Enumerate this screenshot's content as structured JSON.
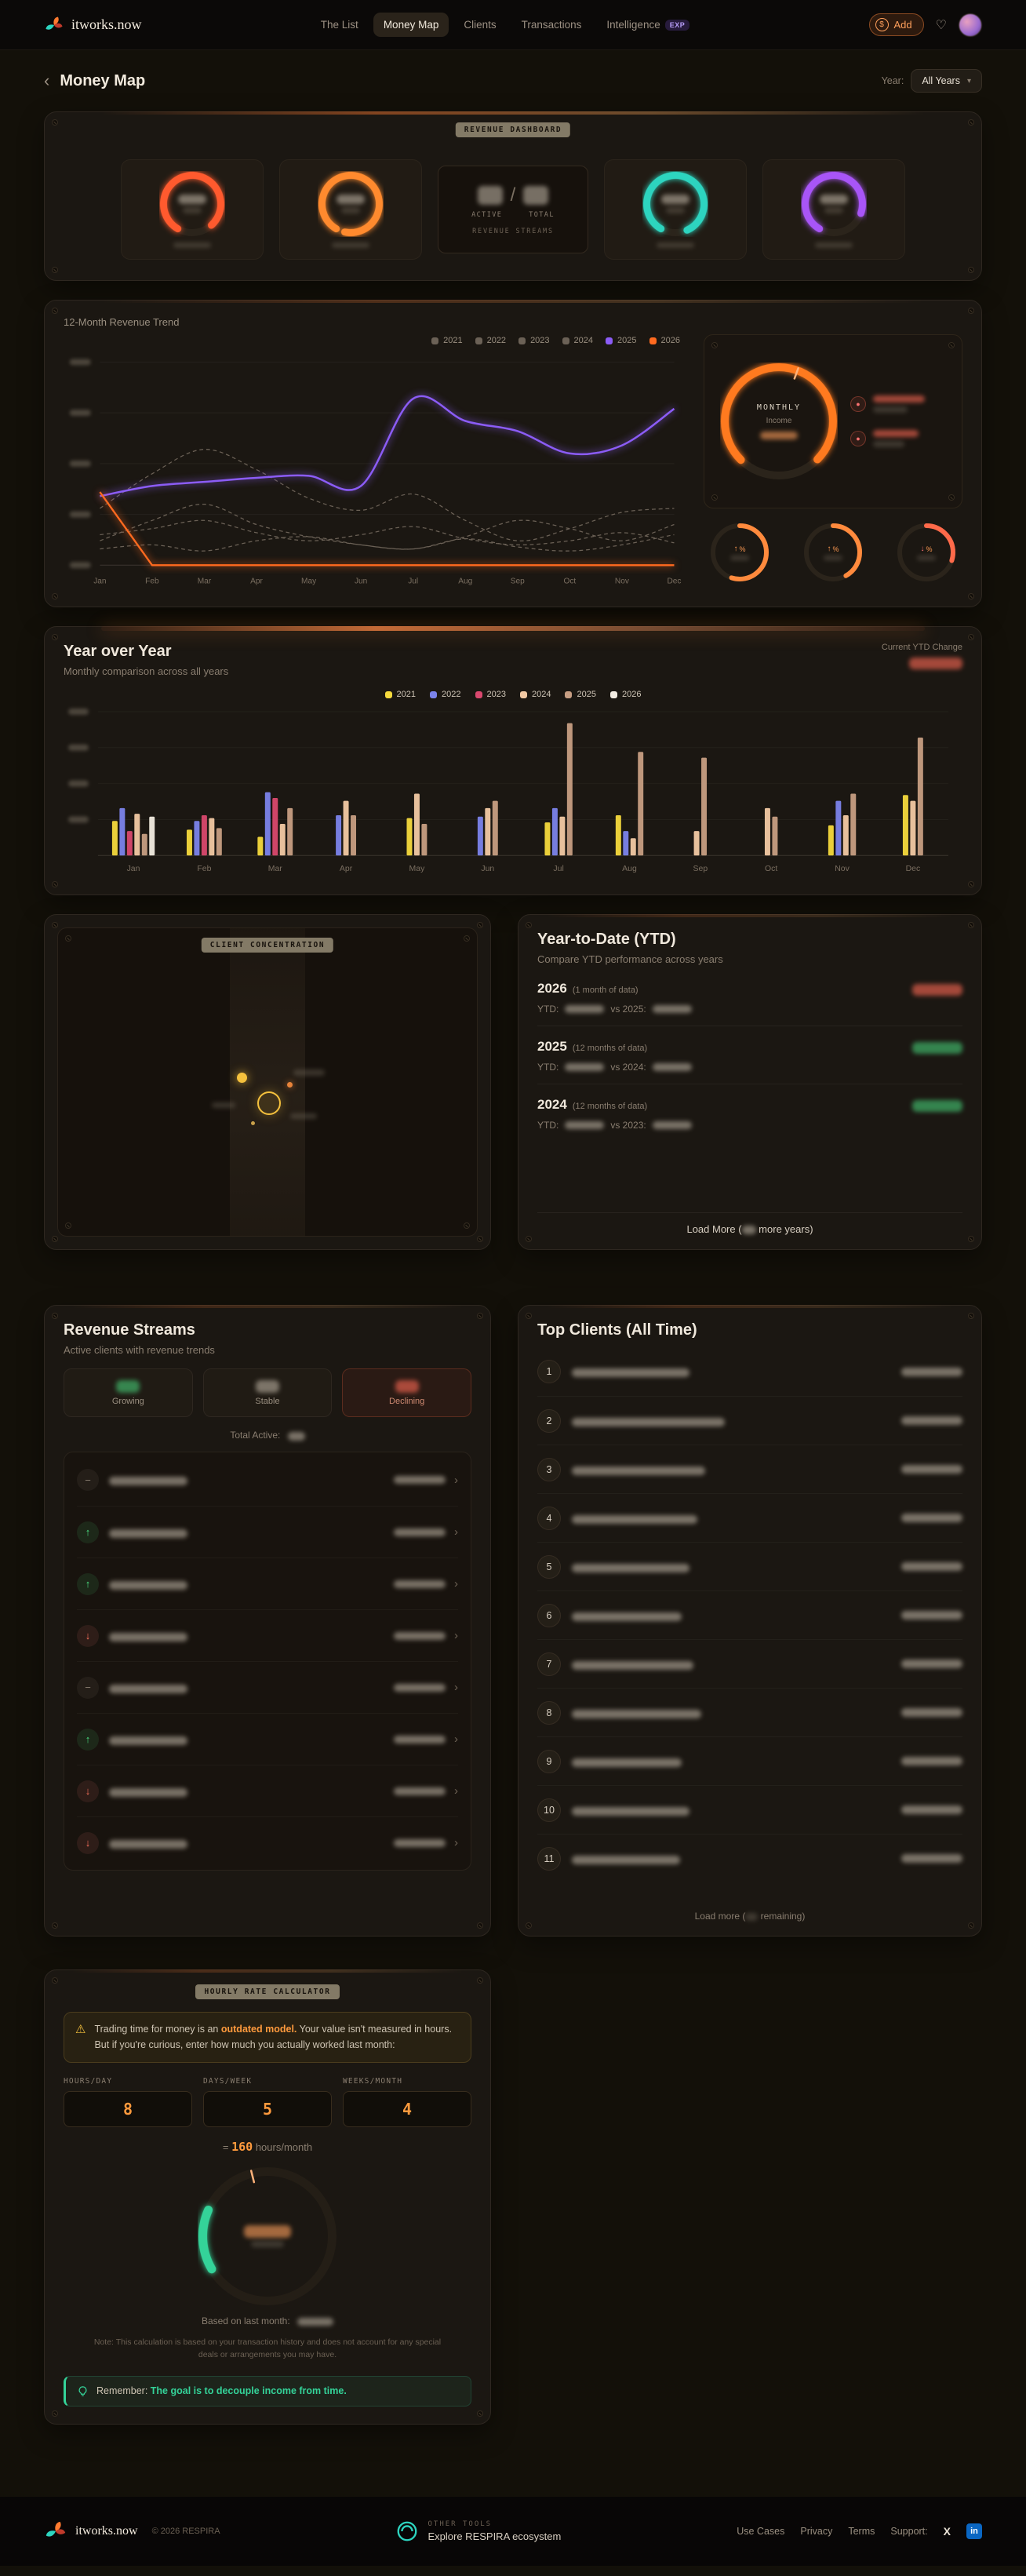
{
  "theme": {
    "accent_orange": "#ff7a2f",
    "accent_purple": "#8b5cf6",
    "accent_teal": "#2dd4bf",
    "accent_green": "#34d399",
    "accent_red": "#f87171",
    "accent_yellow": "#f5c13d"
  },
  "nav": {
    "brand": "itworks.now",
    "items": [
      {
        "label": "The List",
        "active": false
      },
      {
        "label": "Money Map",
        "active": true
      },
      {
        "label": "Clients",
        "active": false
      },
      {
        "label": "Transactions",
        "active": false
      },
      {
        "label": "Intelligence",
        "active": false,
        "badge": "EXP"
      }
    ],
    "add_label": "Add",
    "add_icon": "$"
  },
  "page": {
    "back": "‹",
    "title": "Money Map",
    "year_label": "Year:",
    "year_value": "All Years",
    "chevron": "▾"
  },
  "hero": {
    "badge": "REVENUE DASHBOARD",
    "divider": "/",
    "active_label": "ACTIVE",
    "total_label": "TOTAL",
    "caption": "REVENUE STREAMS"
  },
  "trend": {
    "title": "12-Month Revenue Trend",
    "gauge_title": "MONTHLY",
    "gauge_sub": "Income",
    "pct": "%",
    "minis": [
      {
        "arrow": "↑",
        "dir": "up"
      },
      {
        "arrow": "↑",
        "dir": "up"
      },
      {
        "arrow": "↓",
        "dir": "down"
      }
    ]
  },
  "yoy": {
    "title": "Year over Year",
    "subtitle": "Monthly comparison across all years",
    "ytd_change_label": "Current YTD Change"
  },
  "concentration": {
    "badge": "CLIENT CONCENTRATION"
  },
  "ytd": {
    "title": "Year-to-Date (YTD)",
    "subtitle": "Compare YTD performance across years",
    "rows": [
      {
        "year": "2026",
        "span": "(1 month of data)",
        "ytd_label": "YTD:",
        "vs_label": "vs 2025:",
        "trend": "down"
      },
      {
        "year": "2025",
        "span": "(12 months of data)",
        "ytd_label": "YTD:",
        "vs_label": "vs 2024:",
        "trend": "up"
      },
      {
        "year": "2024",
        "span": "(12 months of data)",
        "ytd_label": "YTD:",
        "vs_label": "vs 2023:",
        "trend": "up"
      }
    ],
    "load_more_prefix": "Load More (",
    "load_more_suffix": " more years)"
  },
  "streams": {
    "title": "Revenue Streams",
    "subtitle": "Active clients with revenue trends",
    "stats": [
      {
        "label": "Growing",
        "tone": "green"
      },
      {
        "label": "Stable",
        "tone": "neutral"
      },
      {
        "label": "Declining",
        "tone": "red"
      }
    ],
    "total_label": "Total Active:",
    "rows": [
      {
        "trend": "flat"
      },
      {
        "trend": "up"
      },
      {
        "trend": "up"
      },
      {
        "trend": "down"
      },
      {
        "trend": "flat"
      },
      {
        "trend": "up"
      },
      {
        "trend": "down"
      },
      {
        "trend": "down"
      }
    ]
  },
  "top_clients": {
    "title": "Top Clients (All Time)",
    "ranks": [
      "1",
      "2",
      "3",
      "4",
      "5",
      "6",
      "7",
      "8",
      "9",
      "10",
      "11"
    ],
    "load_more_prefix": "Load more (",
    "load_more_suffix": " remaining)"
  },
  "calculator": {
    "badge": "HOURLY RATE CALCULATOR",
    "warn_icon": "⚠",
    "warn_pre": "Trading time for money is an ",
    "warn_bold": "outdated model.",
    "warn_post": " Your value isn't measured in hours. But if you're curious, enter how much you actually worked last month:",
    "inputs": [
      {
        "label": "HOURS/DAY",
        "value": "8"
      },
      {
        "label": "DAYS/WEEK",
        "value": "5"
      },
      {
        "label": "WEEKS/MONTH",
        "value": "4"
      }
    ],
    "equals_sign": "=",
    "hours_total": "160",
    "hours_unit": "hours/month",
    "based_label": "Based on last month:",
    "note": "Note: This calculation is based on your transaction history and does not account for any special deals or arrangements you may have.",
    "tip_label": "Remember:",
    "tip_text": "The goal is to decouple income from time."
  },
  "footer": {
    "brand": "itworks.now",
    "copyright": "© 2026 RESPIRA",
    "other_tools": "OTHER TOOLS",
    "other_tools_sub": "Explore RESPIRA ecosystem",
    "links": [
      "Use Cases",
      "Privacy",
      "Terms"
    ],
    "support_label": "Support:",
    "x_label": "X",
    "linkedin_label": "in"
  },
  "chart_data": [
    {
      "type": "line",
      "title": "12-Month Revenue Trend",
      "x": [
        "Jan",
        "Feb",
        "Mar",
        "Apr",
        "May",
        "Jun",
        "Jul",
        "Aug",
        "Sep",
        "Oct",
        "Nov",
        "Dec"
      ],
      "ylim": [
        0,
        100
      ],
      "y_axis_labels_redacted": true,
      "grid": true,
      "legend_position": "top-right",
      "series": [
        {
          "name": "2021",
          "color": "#6b6156",
          "dash": true,
          "values": [
            8,
            10,
            7,
            12,
            14,
            10,
            8,
            13,
            9,
            7,
            10,
            15
          ]
        },
        {
          "name": "2022",
          "color": "#6b6156",
          "dash": true,
          "values": [
            15,
            18,
            22,
            16,
            12,
            15,
            19,
            13,
            10,
            12,
            16,
            11
          ]
        },
        {
          "name": "2023",
          "color": "#6b6156",
          "dash": true,
          "values": [
            12,
            22,
            30,
            20,
            14,
            10,
            8,
            14,
            22,
            18,
            12,
            20
          ]
        },
        {
          "name": "2024",
          "color": "#6b6156",
          "dash": true,
          "values": [
            28,
            45,
            57,
            47,
            33,
            27,
            35,
            22,
            12,
            18,
            26,
            28
          ]
        },
        {
          "name": "2025",
          "color": "#8b5cf6",
          "dash": false,
          "width": 2.6,
          "glow": true,
          "values": [
            34,
            39,
            41,
            43,
            44,
            39,
            82,
            71,
            66,
            55,
            59,
            77
          ]
        },
        {
          "name": "2026",
          "color": "#ff6a1f",
          "dash": false,
          "width": 2.4,
          "glow": true,
          "straight": true,
          "values": [
            36,
            0,
            0,
            0,
            0,
            0,
            0,
            0,
            0,
            0,
            0,
            0
          ]
        }
      ]
    },
    {
      "type": "bar",
      "title": "Year over Year",
      "subtitle": "Monthly comparison across all years",
      "categories": [
        "Jan",
        "Feb",
        "Mar",
        "Apr",
        "May",
        "Jun",
        "Jul",
        "Aug",
        "Sep",
        "Oct",
        "Nov",
        "Dec"
      ],
      "ylim": [
        0,
        100
      ],
      "y_axis_labels_redacted": true,
      "legend_position": "top-center",
      "series": [
        {
          "name": "2021",
          "color": "#f5d93d",
          "values": [
            24,
            18,
            13,
            0,
            26,
            0,
            23,
            28,
            0,
            0,
            21,
            42
          ]
        },
        {
          "name": "2022",
          "color": "#7b83eb",
          "values": [
            33,
            24,
            44,
            28,
            0,
            27,
            33,
            17,
            0,
            0,
            38,
            0
          ]
        },
        {
          "name": "2023",
          "color": "#d9486e",
          "values": [
            17,
            28,
            40,
            0,
            0,
            0,
            0,
            0,
            0,
            0,
            0,
            0
          ]
        },
        {
          "name": "2024",
          "color": "#f2c9a4",
          "values": [
            29,
            26,
            22,
            38,
            43,
            33,
            27,
            12,
            17,
            33,
            28,
            38
          ]
        },
        {
          "name": "2025",
          "color": "#c79e83",
          "values": [
            15,
            19,
            33,
            28,
            22,
            38,
            92,
            72,
            68,
            27,
            43,
            82
          ]
        },
        {
          "name": "2026",
          "color": "#f2ece2",
          "values": [
            27,
            0,
            0,
            0,
            0,
            0,
            0,
            0,
            0,
            0,
            0,
            0
          ]
        }
      ]
    }
  ]
}
